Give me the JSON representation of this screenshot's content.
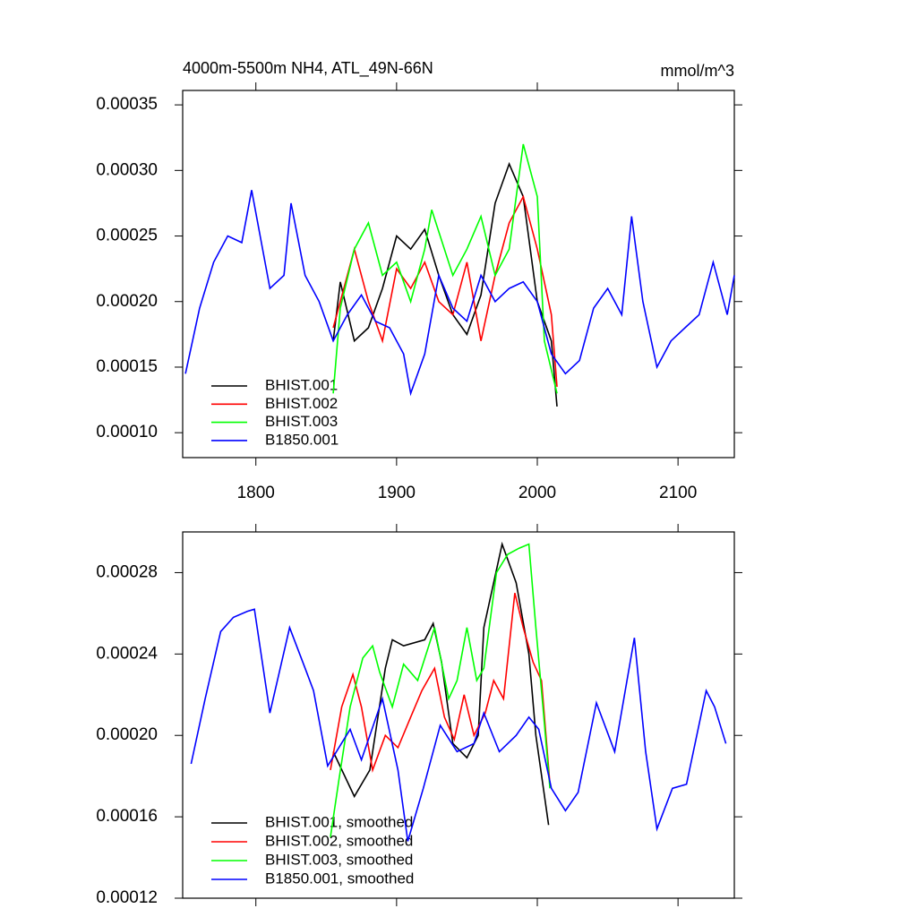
{
  "chart_data": [
    {
      "type": "line",
      "title": "4000m-5500m NH4, ATL_49N-66N",
      "units": "mmol/m^3",
      "xlim": [
        1748,
        2140
      ],
      "xticks": [
        1800,
        1900,
        2000,
        2100
      ],
      "ylim": [
        8.1e-05,
        0.000361
      ],
      "yticks": [
        {
          "value": 0.0001,
          "label": "0.00010"
        },
        0.00015,
        {
          "value": 0.0002,
          "label": "0.00020"
        },
        0.00025,
        {
          "value": 0.0003,
          "label": "0.00030"
        },
        0.00035
      ],
      "series": [
        {
          "name": "BHIST.001",
          "color": "#000000",
          "x": [
            1855,
            1860,
            1870,
            1880,
            1890,
            1900,
            1910,
            1920,
            1930,
            1940,
            1950,
            1960,
            1970,
            1980,
            1990,
            2000,
            2010,
            2014
          ],
          "values": [
            0.00017,
            0.000215,
            0.00017,
            0.00018,
            0.00021,
            0.00025,
            0.00024,
            0.000255,
            0.00022,
            0.00019,
            0.000175,
            0.000205,
            0.000275,
            0.000305,
            0.00028,
            0.0002,
            0.00017,
            0.00012
          ]
        },
        {
          "name": "BHIST.002",
          "color": "#ff0000",
          "x": [
            1855,
            1860,
            1870,
            1880,
            1890,
            1900,
            1910,
            1920,
            1930,
            1940,
            1950,
            1960,
            1970,
            1980,
            1990,
            2000,
            2010,
            2014
          ],
          "values": [
            0.00018,
            0.0002,
            0.00024,
            0.0002,
            0.00017,
            0.000225,
            0.00021,
            0.00023,
            0.0002,
            0.00019,
            0.00023,
            0.00017,
            0.00022,
            0.00026,
            0.00028,
            0.00024,
            0.00019,
            0.000135
          ]
        },
        {
          "name": "BHIST.003",
          "color": "#00ff00",
          "x": [
            1855,
            1860,
            1870,
            1880,
            1890,
            1900,
            1910,
            1920,
            1925,
            1940,
            1950,
            1960,
            1970,
            1980,
            1990,
            2000,
            2005,
            2014
          ],
          "values": [
            0.00013,
            0.000195,
            0.00024,
            0.00026,
            0.00022,
            0.00023,
            0.0002,
            0.00024,
            0.00027,
            0.00022,
            0.00024,
            0.000265,
            0.00022,
            0.00024,
            0.00032,
            0.00028,
            0.00017,
            0.00013
          ]
        },
        {
          "name": "B1850.001",
          "color": "#0000ff",
          "x": [
            1750,
            1760,
            1770,
            1780,
            1790,
            1797,
            1810,
            1820,
            1825,
            1835,
            1845,
            1855,
            1865,
            1875,
            1885,
            1895,
            1905,
            1910,
            1920,
            1930,
            1940,
            1950,
            1960,
            1970,
            1980,
            1990,
            2000,
            2010,
            2020,
            2030,
            2040,
            2050,
            2060,
            2067,
            2075,
            2085,
            2095,
            2105,
            2115,
            2125,
            2135,
            2140
          ],
          "values": [
            0.000145,
            0.000195,
            0.00023,
            0.00025,
            0.000245,
            0.000285,
            0.00021,
            0.00022,
            0.000275,
            0.00022,
            0.0002,
            0.00017,
            0.00019,
            0.000205,
            0.000185,
            0.00018,
            0.00016,
            0.00013,
            0.00016,
            0.00022,
            0.000195,
            0.000185,
            0.00022,
            0.0002,
            0.00021,
            0.000215,
            0.0002,
            0.00016,
            0.000145,
            0.000155,
            0.000195,
            0.00021,
            0.00019,
            0.000265,
            0.0002,
            0.00015,
            0.00017,
            0.00018,
            0.00019,
            0.00023,
            0.00019,
            0.00022
          ]
        }
      ]
    },
    {
      "type": "line",
      "xlim": [
        1748,
        2140
      ],
      "ylim": [
        0.00012,
        0.0003
      ],
      "yticks": [
        0.00012,
        0.00016,
        {
          "value": 0.0002,
          "label": "0.00020"
        },
        0.00024,
        0.00028
      ],
      "series": [
        {
          "name": "BHIST.001, smoothed",
          "color": "#000000",
          "x": [
            1855,
            1870,
            1881,
            1892,
            1897,
            1905,
            1920,
            1926,
            1932,
            1940,
            1950,
            1958,
            1962,
            1975,
            1985,
            1994,
            1999,
            2008
          ],
          "values": [
            0.000192,
            0.00017,
            0.000183,
            0.000233,
            0.000247,
            0.000244,
            0.000247,
            0.000255,
            0.000236,
            0.000196,
            0.000189,
            0.0002,
            0.000253,
            0.000294,
            0.000275,
            0.00024,
            0.0002,
            0.000156
          ]
        },
        {
          "name": "BHIST.002, smoothed",
          "color": "#ff0000",
          "x": [
            1853,
            1861,
            1869,
            1875,
            1883,
            1892,
            1901,
            1910,
            1918,
            1927,
            1934,
            1941,
            1948,
            1955,
            1963,
            1969,
            1976,
            1984,
            1990,
            1997,
            2003,
            2009
          ],
          "values": [
            0.000183,
            0.000214,
            0.00023,
            0.000214,
            0.000183,
            0.0002,
            0.000194,
            0.000209,
            0.000222,
            0.000233,
            0.000209,
            0.000198,
            0.00022,
            0.0002,
            0.000211,
            0.000227,
            0.000218,
            0.00027,
            0.000253,
            0.000236,
            0.000227,
            0.000176
          ]
        },
        {
          "name": "BHIST.003, smoothed",
          "color": "#00ff00",
          "x": [
            1853,
            1859,
            1867,
            1876,
            1883,
            1888,
            1897,
            1905,
            1915,
            1927,
            1937,
            1943,
            1950,
            1957,
            1962,
            1971,
            1979,
            1987,
            1994,
            1999,
            2004,
            2009
          ],
          "values": [
            0.00015,
            0.000178,
            0.000214,
            0.000238,
            0.000244,
            0.000231,
            0.000214,
            0.000235,
            0.000227,
            0.000253,
            0.000218,
            0.000227,
            0.000253,
            0.000227,
            0.000233,
            0.00028,
            0.000289,
            0.000292,
            0.000294,
            0.000253,
            0.000214,
            0.000174
          ]
        },
        {
          "name": "B1850.001, smoothed",
          "color": "#0000ff",
          "x": [
            1754,
            1764,
            1775,
            1784,
            1794,
            1799,
            1810,
            1824,
            1835,
            1841,
            1851,
            1867,
            1875,
            1890,
            1901,
            1908,
            1919,
            1931,
            1943,
            1955,
            1962,
            1973,
            1985,
            1994,
            2001,
            2010,
            2020,
            2029,
            2042,
            2055,
            2069,
            2077,
            2085,
            2096,
            2106,
            2120,
            2126,
            2134
          ],
          "values": [
            0.000186,
            0.000218,
            0.000251,
            0.000258,
            0.000261,
            0.000262,
            0.000211,
            0.000253,
            0.000233,
            0.000222,
            0.000185,
            0.000203,
            0.000188,
            0.000218,
            0.000183,
            0.000148,
            0.000174,
            0.000205,
            0.000192,
            0.000196,
            0.000211,
            0.000192,
            0.0002,
            0.000209,
            0.000203,
            0.000174,
            0.000163,
            0.000172,
            0.000216,
            0.000192,
            0.000248,
            0.000192,
            0.000154,
            0.000174,
            0.000176,
            0.000222,
            0.000214,
            0.000196
          ]
        }
      ]
    }
  ]
}
